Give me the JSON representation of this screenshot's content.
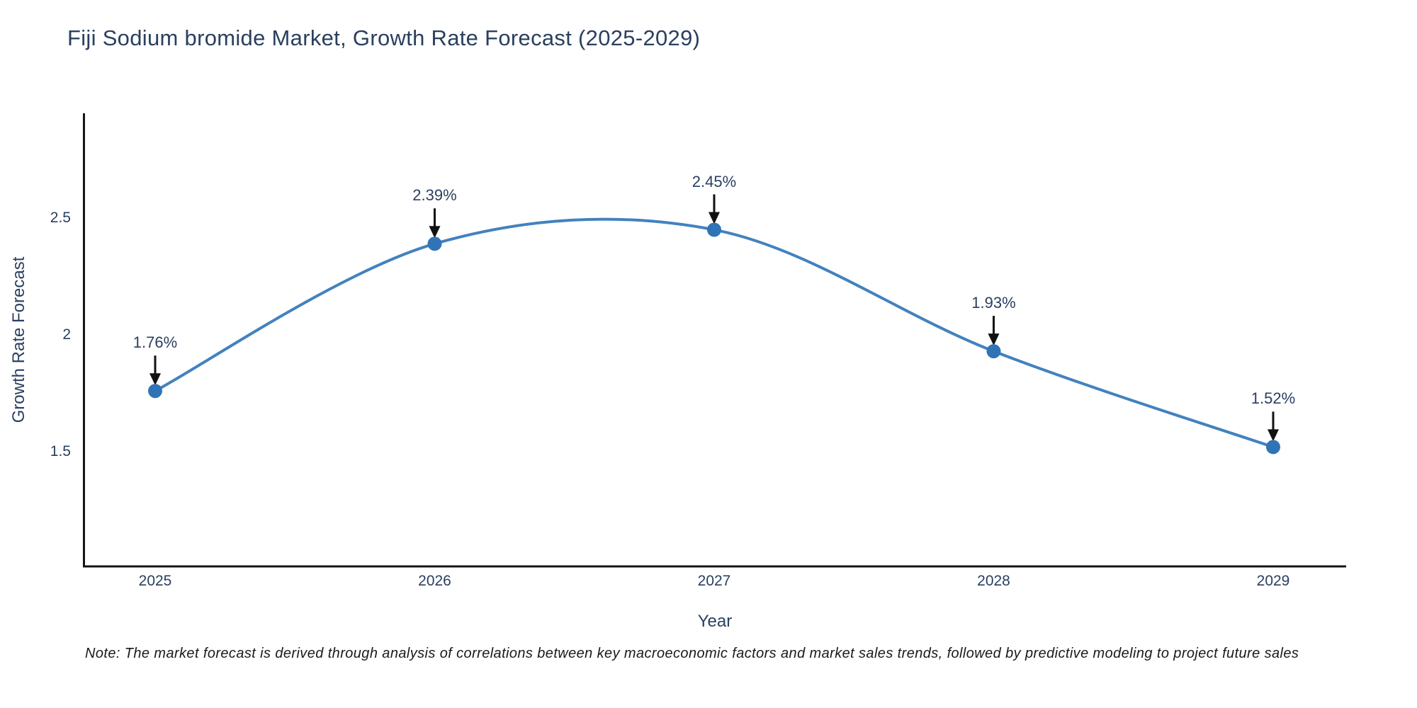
{
  "header": {
    "title": "Fiji Sodium bromide Market, Growth Rate Forecast (2025-2029)"
  },
  "footnote": "Note: The market forecast is derived through analysis of correlations between key macroeconomic factors and market sales trends, followed by predictive modeling to project future sales",
  "colors": {
    "line_blue": "#4282be",
    "marker_blue": "#3174b6",
    "axis_black": "#151515",
    "text_dark": "#2a3f5f",
    "arrow_black": "#111111"
  },
  "chart_data": {
    "type": "line",
    "title": "Fiji Sodium bromide Market, Growth Rate Forecast (2025-2029)",
    "x": [
      2025,
      2026,
      2027,
      2028,
      2029
    ],
    "values": [
      1.76,
      2.39,
      2.45,
      1.93,
      1.52
    ],
    "point_labels": [
      "1.76%",
      "2.39%",
      "2.45%",
      "1.93%",
      "1.52%"
    ],
    "xlabel": "Year",
    "ylabel": "Growth Rate Forecast",
    "yticks": [
      2.5,
      2,
      1.5
    ],
    "ytick_labels": [
      "2.5",
      "2",
      "1.5"
    ],
    "ylim": [
      1.0,
      2.95
    ],
    "line_shape": "spline",
    "markers": true,
    "grid": false,
    "legend": false,
    "annotations_have_arrows": true
  }
}
